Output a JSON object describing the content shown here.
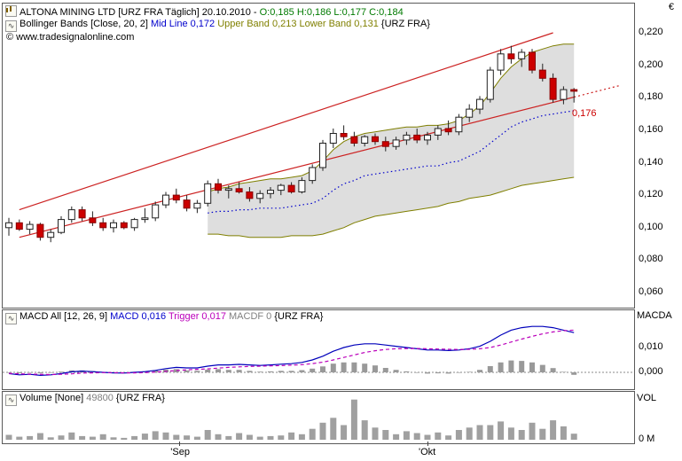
{
  "header": {
    "title": "ALTONA MINING LTD [URZ FRA  Täglich] 20.10.2010 - ",
    "ohlc": "O:0,185 H:0,186 L:0,177 C:0,184",
    "watermark": "© www.tradesignalonline.com"
  },
  "indicator_header": {
    "name": "Bollinger Bands [Close, 20, 2] ",
    "mid": "Mid Line 0,172 ",
    "bands": "Upper Band 0,213 Lower Band 0,131 ",
    "symbol": "{URZ FRA}"
  },
  "macd_header": {
    "name": "MACD All [12, 26, 9] ",
    "macd": "MACD 0,016 ",
    "trigger": "Trigger 0,017 ",
    "macdf": "MACDF 0 ",
    "symbol": "{URZ FRA}"
  },
  "volume_header": {
    "name": "Volume [None] ",
    "value": "49800 ",
    "symbol": "{URZ FRA}"
  },
  "price_axis": {
    "currency": "€",
    "labels": [
      "0,220",
      "0,200",
      "0,180",
      "0,160",
      "0,140",
      "0,120",
      "0,100",
      "0,080",
      "0,060"
    ],
    "annotation": "0,176",
    "annotation_price": 0.176
  },
  "macd_axis": {
    "title": "MACDA",
    "labels": [
      "0,010",
      "0,000"
    ]
  },
  "volume_axis": {
    "title": "VOL",
    "labels": [
      "0 M"
    ]
  },
  "x_axis": {
    "ticks": [
      {
        "label": "'Sep",
        "bar": 16.3
      },
      {
        "label": "'Okt",
        "bar": 40
      }
    ]
  },
  "colors": {
    "up_fill": "#ffffff",
    "up_edge": "#222222",
    "down": "#cc0000",
    "down_edge": "#880000",
    "band_fill": "#d6d6d6",
    "band_edge": "#7f7f00",
    "mid_line": "#0000cc",
    "channel": "#cc2222",
    "macd_line": "#0000bb",
    "trigger_line": "#bb00bb",
    "hist": "#999999",
    "vol": "#a0a0a0",
    "zero_line": "#888888",
    "ohlc_text": "#007a00"
  },
  "chart_data": {
    "type": "candlestick",
    "title": "ALTONA MINING LTD [URZ FRA] Täglich",
    "price_range": {
      "min": 0.06,
      "max": 0.22
    },
    "volume_max": 350000,
    "candles": [
      [
        0.1,
        0.106,
        0.095,
        0.103
      ],
      [
        0.103,
        0.105,
        0.098,
        0.099
      ],
      [
        0.099,
        0.104,
        0.096,
        0.102
      ],
      [
        0.102,
        0.103,
        0.092,
        0.094
      ],
      [
        0.094,
        0.099,
        0.091,
        0.097
      ],
      [
        0.097,
        0.107,
        0.096,
        0.105
      ],
      [
        0.105,
        0.113,
        0.103,
        0.111
      ],
      [
        0.111,
        0.113,
        0.104,
        0.106
      ],
      [
        0.106,
        0.11,
        0.101,
        0.103
      ],
      [
        0.103,
        0.106,
        0.098,
        0.1
      ],
      [
        0.1,
        0.105,
        0.097,
        0.103
      ],
      [
        0.103,
        0.104,
        0.099,
        0.1
      ],
      [
        0.1,
        0.106,
        0.098,
        0.105
      ],
      [
        0.105,
        0.112,
        0.103,
        0.106
      ],
      [
        0.106,
        0.116,
        0.104,
        0.114
      ],
      [
        0.114,
        0.122,
        0.112,
        0.12
      ],
      [
        0.12,
        0.124,
        0.115,
        0.117
      ],
      [
        0.117,
        0.12,
        0.11,
        0.112
      ],
      [
        0.112,
        0.117,
        0.109,
        0.115
      ],
      [
        0.115,
        0.129,
        0.113,
        0.127
      ],
      [
        0.127,
        0.13,
        0.121,
        0.123
      ],
      [
        0.123,
        0.126,
        0.118,
        0.124
      ],
      [
        0.124,
        0.128,
        0.121,
        0.122
      ],
      [
        0.122,
        0.125,
        0.116,
        0.118
      ],
      [
        0.118,
        0.123,
        0.115,
        0.121
      ],
      [
        0.121,
        0.125,
        0.118,
        0.123
      ],
      [
        0.123,
        0.127,
        0.12,
        0.126
      ],
      [
        0.126,
        0.128,
        0.121,
        0.122
      ],
      [
        0.122,
        0.131,
        0.121,
        0.129
      ],
      [
        0.129,
        0.139,
        0.127,
        0.137
      ],
      [
        0.137,
        0.154,
        0.135,
        0.152
      ],
      [
        0.152,
        0.161,
        0.149,
        0.158
      ],
      [
        0.158,
        0.163,
        0.154,
        0.156
      ],
      [
        0.156,
        0.159,
        0.15,
        0.152
      ],
      [
        0.152,
        0.157,
        0.15,
        0.156
      ],
      [
        0.156,
        0.158,
        0.151,
        0.153
      ],
      [
        0.153,
        0.156,
        0.147,
        0.15
      ],
      [
        0.15,
        0.156,
        0.148,
        0.154
      ],
      [
        0.154,
        0.159,
        0.151,
        0.157
      ],
      [
        0.157,
        0.161,
        0.152,
        0.154
      ],
      [
        0.154,
        0.159,
        0.151,
        0.157
      ],
      [
        0.157,
        0.163,
        0.154,
        0.161
      ],
      [
        0.161,
        0.166,
        0.157,
        0.159
      ],
      [
        0.159,
        0.17,
        0.157,
        0.168
      ],
      [
        0.168,
        0.176,
        0.165,
        0.173
      ],
      [
        0.173,
        0.181,
        0.17,
        0.179
      ],
      [
        0.179,
        0.199,
        0.177,
        0.197
      ],
      [
        0.197,
        0.21,
        0.194,
        0.207
      ],
      [
        0.207,
        0.212,
        0.201,
        0.204
      ],
      [
        0.204,
        0.21,
        0.199,
        0.208
      ],
      [
        0.208,
        0.21,
        0.195,
        0.197
      ],
      [
        0.197,
        0.201,
        0.19,
        0.192
      ],
      [
        0.192,
        0.195,
        0.177,
        0.179
      ],
      [
        0.179,
        0.187,
        0.176,
        0.185
      ],
      [
        0.185,
        0.186,
        0.177,
        0.184
      ]
    ],
    "bollinger": {
      "start_index": 19,
      "upper": [
        0.122,
        0.124,
        0.125,
        0.127,
        0.128,
        0.129,
        0.13,
        0.13,
        0.131,
        0.132,
        0.135,
        0.141,
        0.148,
        0.153,
        0.156,
        0.158,
        0.159,
        0.16,
        0.161,
        0.162,
        0.162,
        0.163,
        0.163,
        0.164,
        0.166,
        0.17,
        0.175,
        0.183,
        0.192,
        0.199,
        0.204,
        0.208,
        0.21,
        0.212,
        0.213,
        0.213
      ],
      "mid": [
        0.109,
        0.11,
        0.11,
        0.111,
        0.111,
        0.112,
        0.112,
        0.112,
        0.113,
        0.114,
        0.115,
        0.118,
        0.123,
        0.127,
        0.129,
        0.132,
        0.133,
        0.134,
        0.135,
        0.136,
        0.137,
        0.138,
        0.138,
        0.14,
        0.141,
        0.144,
        0.147,
        0.152,
        0.157,
        0.162,
        0.165,
        0.167,
        0.169,
        0.17,
        0.171,
        0.172
      ],
      "lower": [
        0.096,
        0.096,
        0.095,
        0.095,
        0.094,
        0.094,
        0.094,
        0.094,
        0.095,
        0.095,
        0.095,
        0.096,
        0.098,
        0.1,
        0.103,
        0.105,
        0.107,
        0.108,
        0.109,
        0.11,
        0.111,
        0.112,
        0.113,
        0.115,
        0.116,
        0.118,
        0.119,
        0.12,
        0.122,
        0.124,
        0.126,
        0.127,
        0.128,
        0.129,
        0.13,
        0.131
      ]
    },
    "channel_lines": [
      {
        "x1_bar": 1,
        "p1": 0.111,
        "x2_bar": 52,
        "p2": 0.22,
        "style": "solid"
      },
      {
        "x1_bar": 1,
        "p1": 0.094,
        "x2_bar": 54,
        "p2": 0.1804,
        "style": "solid"
      },
      {
        "x1_bar": 54,
        "p1": 0.1804,
        "x2_bar": 58.5,
        "p2": 0.1877,
        "style": "dotted"
      }
    ],
    "macd": {
      "macd": [
        -0.0005,
        -0.001,
        -0.0008,
        -0.0012,
        -0.001,
        -0.0005,
        0.0002,
        0.0005,
        0.0003,
        0,
        -0.0002,
        -0.0003,
        0,
        0.0003,
        0.0008,
        0.0015,
        0.002,
        0.0018,
        0.0018,
        0.0025,
        0.003,
        0.003,
        0.0032,
        0.003,
        0.0028,
        0.003,
        0.0033,
        0.0035,
        0.004,
        0.005,
        0.0065,
        0.0085,
        0.01,
        0.011,
        0.0115,
        0.0115,
        0.011,
        0.0105,
        0.01,
        0.0095,
        0.009,
        0.009,
        0.0088,
        0.009,
        0.0095,
        0.0105,
        0.0125,
        0.015,
        0.017,
        0.018,
        0.0185,
        0.0185,
        0.018,
        0.017,
        0.016
      ],
      "trigger": [
        -0.0004,
        -0.0006,
        -0.0007,
        -0.0008,
        -0.0009,
        -0.0008,
        -0.0006,
        -0.0003,
        -0.0002,
        -0.0001,
        -0.0001,
        -0.0002,
        -0.0002,
        -0.0001,
        0.0001,
        0.0004,
        0.0007,
        0.001,
        0.0012,
        0.0014,
        0.0017,
        0.002,
        0.0022,
        0.0024,
        0.0025,
        0.0026,
        0.0027,
        0.0029,
        0.0031,
        0.0035,
        0.0041,
        0.005,
        0.006,
        0.007,
        0.008,
        0.0087,
        0.0092,
        0.0095,
        0.0096,
        0.0096,
        0.0095,
        0.0094,
        0.0093,
        0.0092,
        0.0093,
        0.0095,
        0.01,
        0.011,
        0.0122,
        0.0134,
        0.0145,
        0.0155,
        0.0163,
        0.0168,
        0.017
      ]
    },
    "volume": [
      40000,
      25000,
      30000,
      55000,
      20000,
      35000,
      60000,
      30000,
      25000,
      45000,
      20000,
      15000,
      30000,
      50000,
      70000,
      60000,
      40000,
      35000,
      25000,
      80000,
      45000,
      30000,
      55000,
      40000,
      25000,
      30000,
      35000,
      60000,
      45000,
      90000,
      140000,
      180000,
      120000,
      330000,
      160000,
      100000,
      80000,
      45000,
      70000,
      55000,
      40000,
      60000,
      35000,
      80000,
      100000,
      120000,
      120000,
      150000,
      100000,
      80000,
      140000,
      90000,
      160000,
      110000,
      49800
    ]
  }
}
